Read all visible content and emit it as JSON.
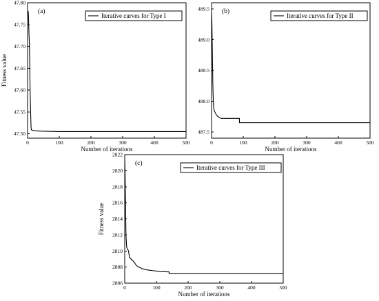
{
  "chart_data": [
    {
      "type": "line",
      "panel_label": "(a)",
      "xlabel": "Number of iterations",
      "ylabel": "Fitness value",
      "xlim": [
        0,
        500
      ],
      "ylim": [
        47.49,
        47.8
      ],
      "xticks": [
        0,
        100,
        200,
        300,
        400,
        500
      ],
      "yticks": [
        47.5,
        47.55,
        47.6,
        47.65,
        47.7,
        47.75,
        47.8
      ],
      "ytick_labels": [
        "47.50",
        "47.55",
        "47.60",
        "47.65",
        "47.70",
        "47.75",
        "47.80"
      ],
      "legend_position": "top-right",
      "series": [
        {
          "name": "Iterative curves for Type I",
          "x": [
            0,
            2,
            3,
            4,
            6,
            7,
            8,
            9,
            10,
            11,
            12,
            20,
            40,
            100,
            500
          ],
          "y": [
            47.78,
            47.78,
            47.77,
            47.74,
            47.7,
            47.65,
            47.6,
            47.57,
            47.54,
            47.515,
            47.509,
            47.507,
            47.506,
            47.505,
            47.505
          ]
        }
      ]
    },
    {
      "type": "line",
      "panel_label": "(b)",
      "xlabel": "Number of iterations",
      "ylabel": "",
      "xlim": [
        0,
        500
      ],
      "ylim": [
        487.4,
        489.6
      ],
      "xticks": [
        0,
        100,
        200,
        300,
        400,
        500
      ],
      "yticks": [
        487.5,
        488.0,
        488.5,
        489.0,
        489.5
      ],
      "ytick_labels": [
        "487.5",
        "488.0",
        "488.5",
        "489.0",
        "489.5"
      ],
      "legend_position": "top-right",
      "series": [
        {
          "name": "Iterative curves for Type II",
          "x": [
            0,
            1,
            2,
            3,
            4,
            5,
            6,
            8,
            10,
            15,
            20,
            30,
            88,
            88,
            500
          ],
          "y": [
            489.45,
            489.3,
            489.0,
            488.65,
            488.3,
            488.1,
            487.95,
            487.85,
            487.83,
            487.78,
            487.75,
            487.72,
            487.72,
            487.65,
            487.65
          ]
        }
      ]
    },
    {
      "type": "line",
      "panel_label": "(c)",
      "xlabel": "Number of iterations",
      "ylabel": "Fitness value",
      "xlim": [
        0,
        500
      ],
      "ylim": [
        2806,
        2822
      ],
      "xticks": [
        0,
        100,
        200,
        300,
        400,
        500
      ],
      "yticks": [
        2806,
        2808,
        2810,
        2812,
        2814,
        2816,
        2818,
        2820,
        2822
      ],
      "legend_position": "top-right",
      "series": [
        {
          "name": "Iterative curves for Type III",
          "x": [
            0,
            1,
            2,
            3,
            4,
            6,
            8,
            12,
            15,
            20,
            25,
            30,
            35,
            40,
            45,
            50,
            55,
            65,
            70,
            80,
            90,
            100,
            110,
            140,
            140,
            500
          ],
          "y": [
            2821.5,
            2820,
            2817,
            2814.5,
            2812,
            2810.5,
            2810.3,
            2810.0,
            2809.2,
            2809.0,
            2808.8,
            2808.6,
            2808.3,
            2808.1,
            2808.0,
            2807.9,
            2807.8,
            2807.7,
            2807.65,
            2807.6,
            2807.55,
            2807.5,
            2807.45,
            2807.4,
            2807.2,
            2807.2
          ]
        }
      ]
    }
  ]
}
